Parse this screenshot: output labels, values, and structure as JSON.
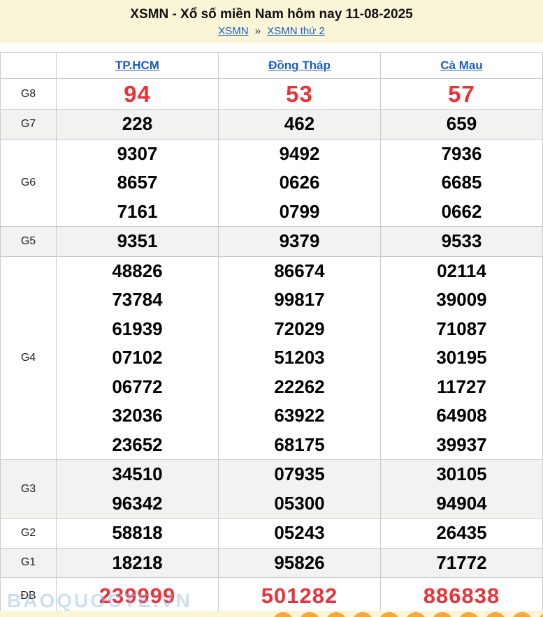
{
  "header": {
    "title": "XSMN - Xổ số miền Nam hôm nay 11-08-2025",
    "breadcrumb": {
      "links": [
        "XSMN",
        "XSMN thứ 2"
      ],
      "separator": "»"
    }
  },
  "table": {
    "columns": [
      "TP.HCM",
      "Đồng Tháp",
      "Cà Mau"
    ],
    "rows": [
      {
        "key": "g8",
        "label": "G8",
        "special": true,
        "cells": [
          [
            "94"
          ],
          [
            "53"
          ],
          [
            "57"
          ]
        ]
      },
      {
        "key": "g7",
        "label": "G7",
        "cells": [
          [
            "228"
          ],
          [
            "462"
          ],
          [
            "659"
          ]
        ]
      },
      {
        "key": "g6",
        "label": "G6",
        "cells": [
          [
            "9307",
            "8657",
            "7161"
          ],
          [
            "9492",
            "0626",
            "0799"
          ],
          [
            "7936",
            "6685",
            "0662"
          ]
        ]
      },
      {
        "key": "g5",
        "label": "G5",
        "cells": [
          [
            "9351"
          ],
          [
            "9379"
          ],
          [
            "9533"
          ]
        ]
      },
      {
        "key": "g4",
        "label": "G4",
        "cells": [
          [
            "48826",
            "73784",
            "61939",
            "07102",
            "06772",
            "32036",
            "23652"
          ],
          [
            "86674",
            "99817",
            "72029",
            "51203",
            "22262",
            "63922",
            "68175"
          ],
          [
            "02114",
            "39009",
            "71087",
            "30195",
            "11727",
            "64908",
            "39937"
          ]
        ]
      },
      {
        "key": "g3",
        "label": "G3",
        "cells": [
          [
            "34510",
            "96342"
          ],
          [
            "07935",
            "05300"
          ],
          [
            "30105",
            "94904"
          ]
        ]
      },
      {
        "key": "g2",
        "label": "G2",
        "cells": [
          [
            "58818"
          ],
          [
            "05243"
          ],
          [
            "26435"
          ]
        ]
      },
      {
        "key": "g1",
        "label": "G1",
        "cells": [
          [
            "18218"
          ],
          [
            "95826"
          ],
          [
            "71772"
          ]
        ]
      },
      {
        "key": "db",
        "label": "ĐB",
        "special": true,
        "cells": [
          [
            "239999"
          ],
          [
            "501282"
          ],
          [
            "886838"
          ]
        ]
      }
    ]
  },
  "watermark": "BAOQUOCTE.VN",
  "footer": {
    "icon": "lotto-ball-icon",
    "ball_count": 11
  },
  "colors": {
    "red": "#E93339",
    "link_blue": "#1A5CBE",
    "header_bg": "#FBF5D7",
    "row_alt_bg": "#F2F2F0",
    "border": "#CBCBCB",
    "ball_orange": "#F5A83F"
  }
}
